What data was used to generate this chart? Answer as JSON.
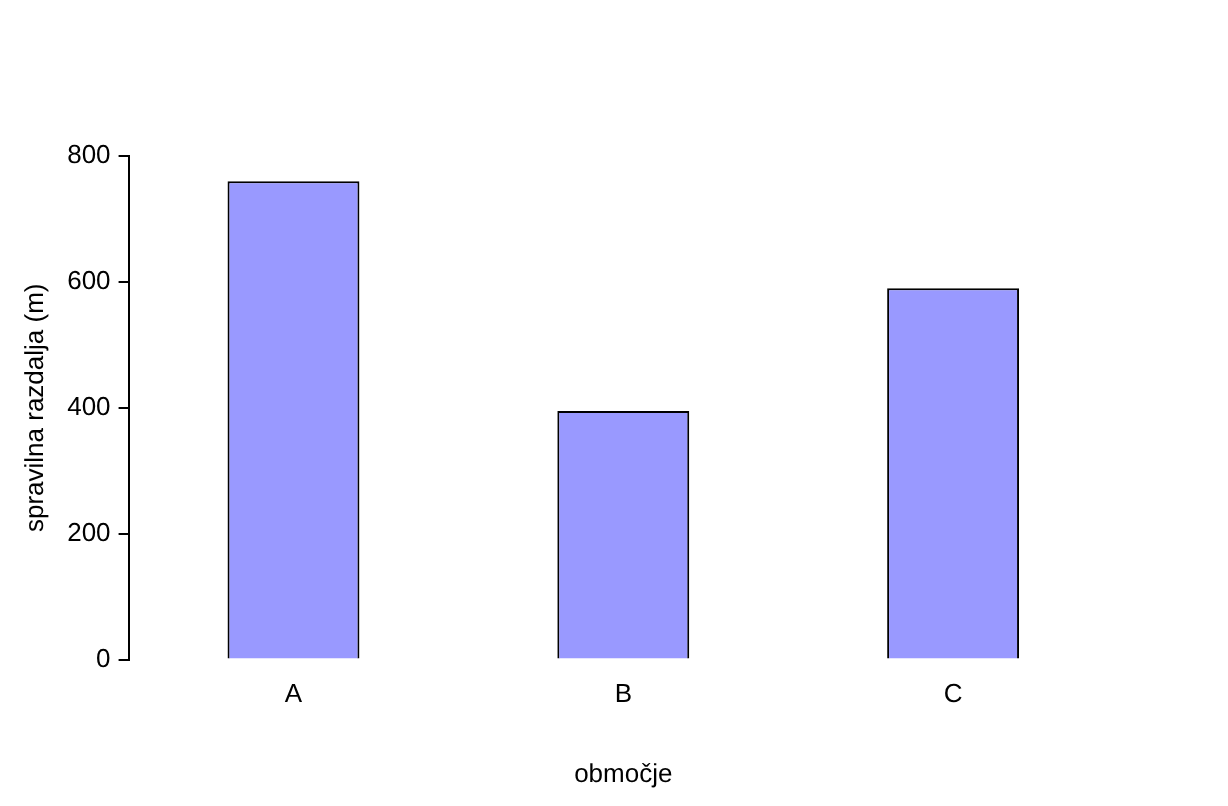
{
  "chart_data": {
    "type": "bar",
    "xlabel": "območje",
    "ylabel": "spravilna razdalja (m)",
    "categories": [
      "A",
      "B",
      "C"
    ],
    "values": [
      760,
      395,
      590
    ],
    "color": "#9999ff",
    "ylim": [
      0,
      800
    ],
    "yticks": [
      0,
      200,
      400,
      600,
      800
    ],
    "grid": false
  }
}
